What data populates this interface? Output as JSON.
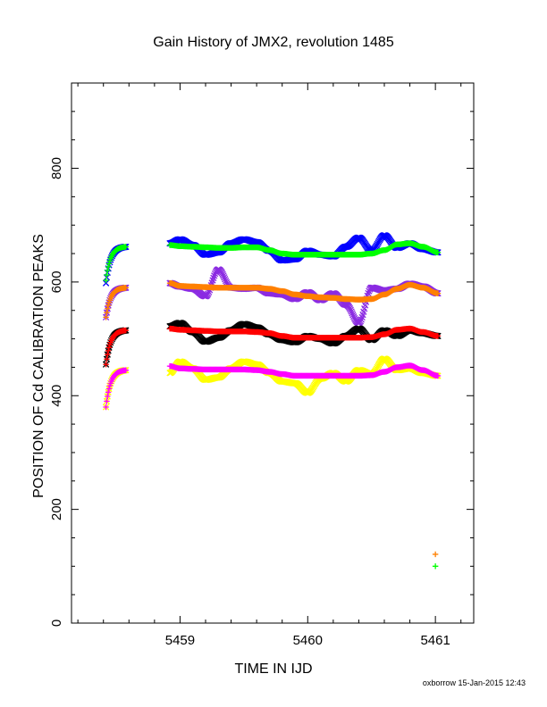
{
  "chart_data": {
    "type": "scatter",
    "title": "Gain History of JMX2, revolution 1485",
    "xlabel": "TIME IN IJD",
    "ylabel": "POSITION OF Cd CALIBRATION PEAKS",
    "xlim": [
      5458.15,
      5461.3
    ],
    "ylim": [
      0,
      950
    ],
    "xticks": [
      5459,
      5460,
      5461
    ],
    "yticks": [
      0,
      200,
      400,
      600,
      800
    ],
    "grid": false,
    "footer": "oxborrow 15-Jan-2015 12:43",
    "segments": [
      [
        5458.42,
        5458.58
      ],
      [
        5458.92,
        5461.02
      ]
    ],
    "series": [
      {
        "color": "#0000ff",
        "marker": "x",
        "base": 662,
        "x": [
          5458.42,
          5458.5,
          5458.58,
          5458.92,
          5459.0,
          5459.1,
          5459.2,
          5459.3,
          5459.4,
          5459.5,
          5459.6,
          5459.7,
          5459.8,
          5459.9,
          5460.0,
          5460.1,
          5460.2,
          5460.3,
          5460.4,
          5460.5,
          5460.6,
          5460.7,
          5460.8,
          5460.9,
          5461.02
        ],
        "y": [
          598,
          655,
          669,
          668,
          675,
          665,
          648,
          652,
          668,
          675,
          670,
          655,
          638,
          640,
          655,
          648,
          645,
          662,
          678,
          655,
          682,
          660,
          668,
          658,
          652
        ]
      },
      {
        "color": "#00ff00",
        "marker": "+",
        "base": 662,
        "x": [
          5458.42,
          5458.5,
          5458.58,
          5458.92,
          5459.0,
          5459.1,
          5459.2,
          5459.3,
          5459.4,
          5459.5,
          5459.6,
          5459.7,
          5459.8,
          5459.9,
          5460.0,
          5460.1,
          5460.2,
          5460.3,
          5460.4,
          5460.5,
          5460.6,
          5460.7,
          5460.8,
          5460.9,
          5461.02
        ],
        "y": [
          603,
          658,
          670,
          665,
          663,
          662,
          661,
          660,
          660,
          661,
          661,
          656,
          650,
          648,
          648,
          648,
          648,
          648,
          648,
          650,
          656,
          666,
          668,
          662,
          652
        ]
      },
      {
        "color": "#8b2be2",
        "marker": "x",
        "base": 590,
        "x": [
          5458.42,
          5458.5,
          5458.58,
          5458.92,
          5459.0,
          5459.1,
          5459.2,
          5459.3,
          5459.4,
          5459.5,
          5459.6,
          5459.7,
          5459.8,
          5459.9,
          5460.0,
          5460.1,
          5460.2,
          5460.3,
          5460.4,
          5460.5,
          5460.6,
          5460.7,
          5460.8,
          5460.9,
          5461.02
        ],
        "y": [
          538,
          585,
          597,
          598,
          592,
          588,
          575,
          622,
          590,
          588,
          590,
          580,
          578,
          570,
          582,
          568,
          580,
          560,
          528,
          590,
          585,
          588,
          597,
          592,
          580
        ]
      },
      {
        "color": "#ff8000",
        "marker": "+",
        "base": 590,
        "x": [
          5458.42,
          5458.5,
          5458.58,
          5458.92,
          5459.0,
          5459.1,
          5459.2,
          5459.3,
          5459.4,
          5459.5,
          5459.6,
          5459.7,
          5459.8,
          5459.9,
          5460.0,
          5460.1,
          5460.2,
          5460.3,
          5460.4,
          5460.5,
          5460.6,
          5460.7,
          5460.8,
          5460.9,
          5461.02
        ],
        "y": [
          538,
          585,
          596,
          598,
          593,
          592,
          591,
          590,
          590,
          590,
          590,
          588,
          584,
          578,
          575,
          573,
          572,
          570,
          569,
          570,
          578,
          588,
          595,
          590,
          580
        ]
      },
      {
        "color": "#000000",
        "marker": "x",
        "base": 515,
        "x": [
          5458.42,
          5458.5,
          5458.58,
          5458.92,
          5459.0,
          5459.1,
          5459.2,
          5459.3,
          5459.4,
          5459.5,
          5459.6,
          5459.7,
          5459.8,
          5459.9,
          5460.0,
          5460.1,
          5460.2,
          5460.3,
          5460.4,
          5460.5,
          5460.6,
          5460.7,
          5460.8,
          5460.9,
          5461.02
        ],
        "y": [
          455,
          508,
          523,
          522,
          528,
          512,
          495,
          502,
          515,
          526,
          520,
          508,
          498,
          494,
          505,
          500,
          492,
          505,
          518,
          498,
          515,
          505,
          515,
          510,
          505
        ]
      },
      {
        "color": "#ff0000",
        "marker": "+",
        "base": 515,
        "x": [
          5458.42,
          5458.5,
          5458.58,
          5458.92,
          5459.0,
          5459.1,
          5459.2,
          5459.3,
          5459.4,
          5459.5,
          5459.6,
          5459.7,
          5459.8,
          5459.9,
          5460.0,
          5460.1,
          5460.2,
          5460.3,
          5460.4,
          5460.5,
          5460.6,
          5460.7,
          5460.8,
          5460.9,
          5461.02
        ],
        "y": [
          455,
          510,
          523,
          518,
          516,
          515,
          514,
          513,
          513,
          513,
          512,
          510,
          505,
          502,
          502,
          502,
          502,
          502,
          502,
          503,
          508,
          516,
          518,
          512,
          505
        ]
      },
      {
        "color": "#ffff00",
        "marker": "x",
        "base": 445,
        "x": [
          5458.42,
          5458.5,
          5458.58,
          5458.92,
          5459.0,
          5459.1,
          5459.2,
          5459.3,
          5459.4,
          5459.5,
          5459.6,
          5459.7,
          5459.8,
          5459.9,
          5460.0,
          5460.1,
          5460.2,
          5460.3,
          5460.4,
          5460.5,
          5460.6,
          5460.7,
          5460.8,
          5460.9,
          5461.02
        ],
        "y": [
          380,
          438,
          455,
          440,
          460,
          448,
          428,
          432,
          448,
          460,
          455,
          440,
          425,
          422,
          405,
          430,
          440,
          425,
          445,
          438,
          465,
          445,
          448,
          440,
          435
        ]
      },
      {
        "color": "#ff00ff",
        "marker": "+",
        "base": 445,
        "x": [
          5458.42,
          5458.5,
          5458.58,
          5458.92,
          5459.0,
          5459.1,
          5459.2,
          5459.3,
          5459.4,
          5459.5,
          5459.6,
          5459.7,
          5459.8,
          5459.9,
          5460.0,
          5460.1,
          5460.2,
          5460.3,
          5460.4,
          5460.5,
          5460.6,
          5460.7,
          5460.8,
          5460.9,
          5461.02
        ],
        "y": [
          380,
          440,
          455,
          452,
          448,
          447,
          446,
          446,
          446,
          446,
          445,
          442,
          438,
          435,
          435,
          435,
          435,
          435,
          435,
          436,
          442,
          450,
          453,
          445,
          435
        ]
      }
    ],
    "annotations": [
      {
        "x": 5461.0,
        "y": 121,
        "marker": "+",
        "color": "#ff8000"
      },
      {
        "x": 5461.0,
        "y": 100,
        "marker": "+",
        "color": "#00ff00"
      }
    ]
  }
}
